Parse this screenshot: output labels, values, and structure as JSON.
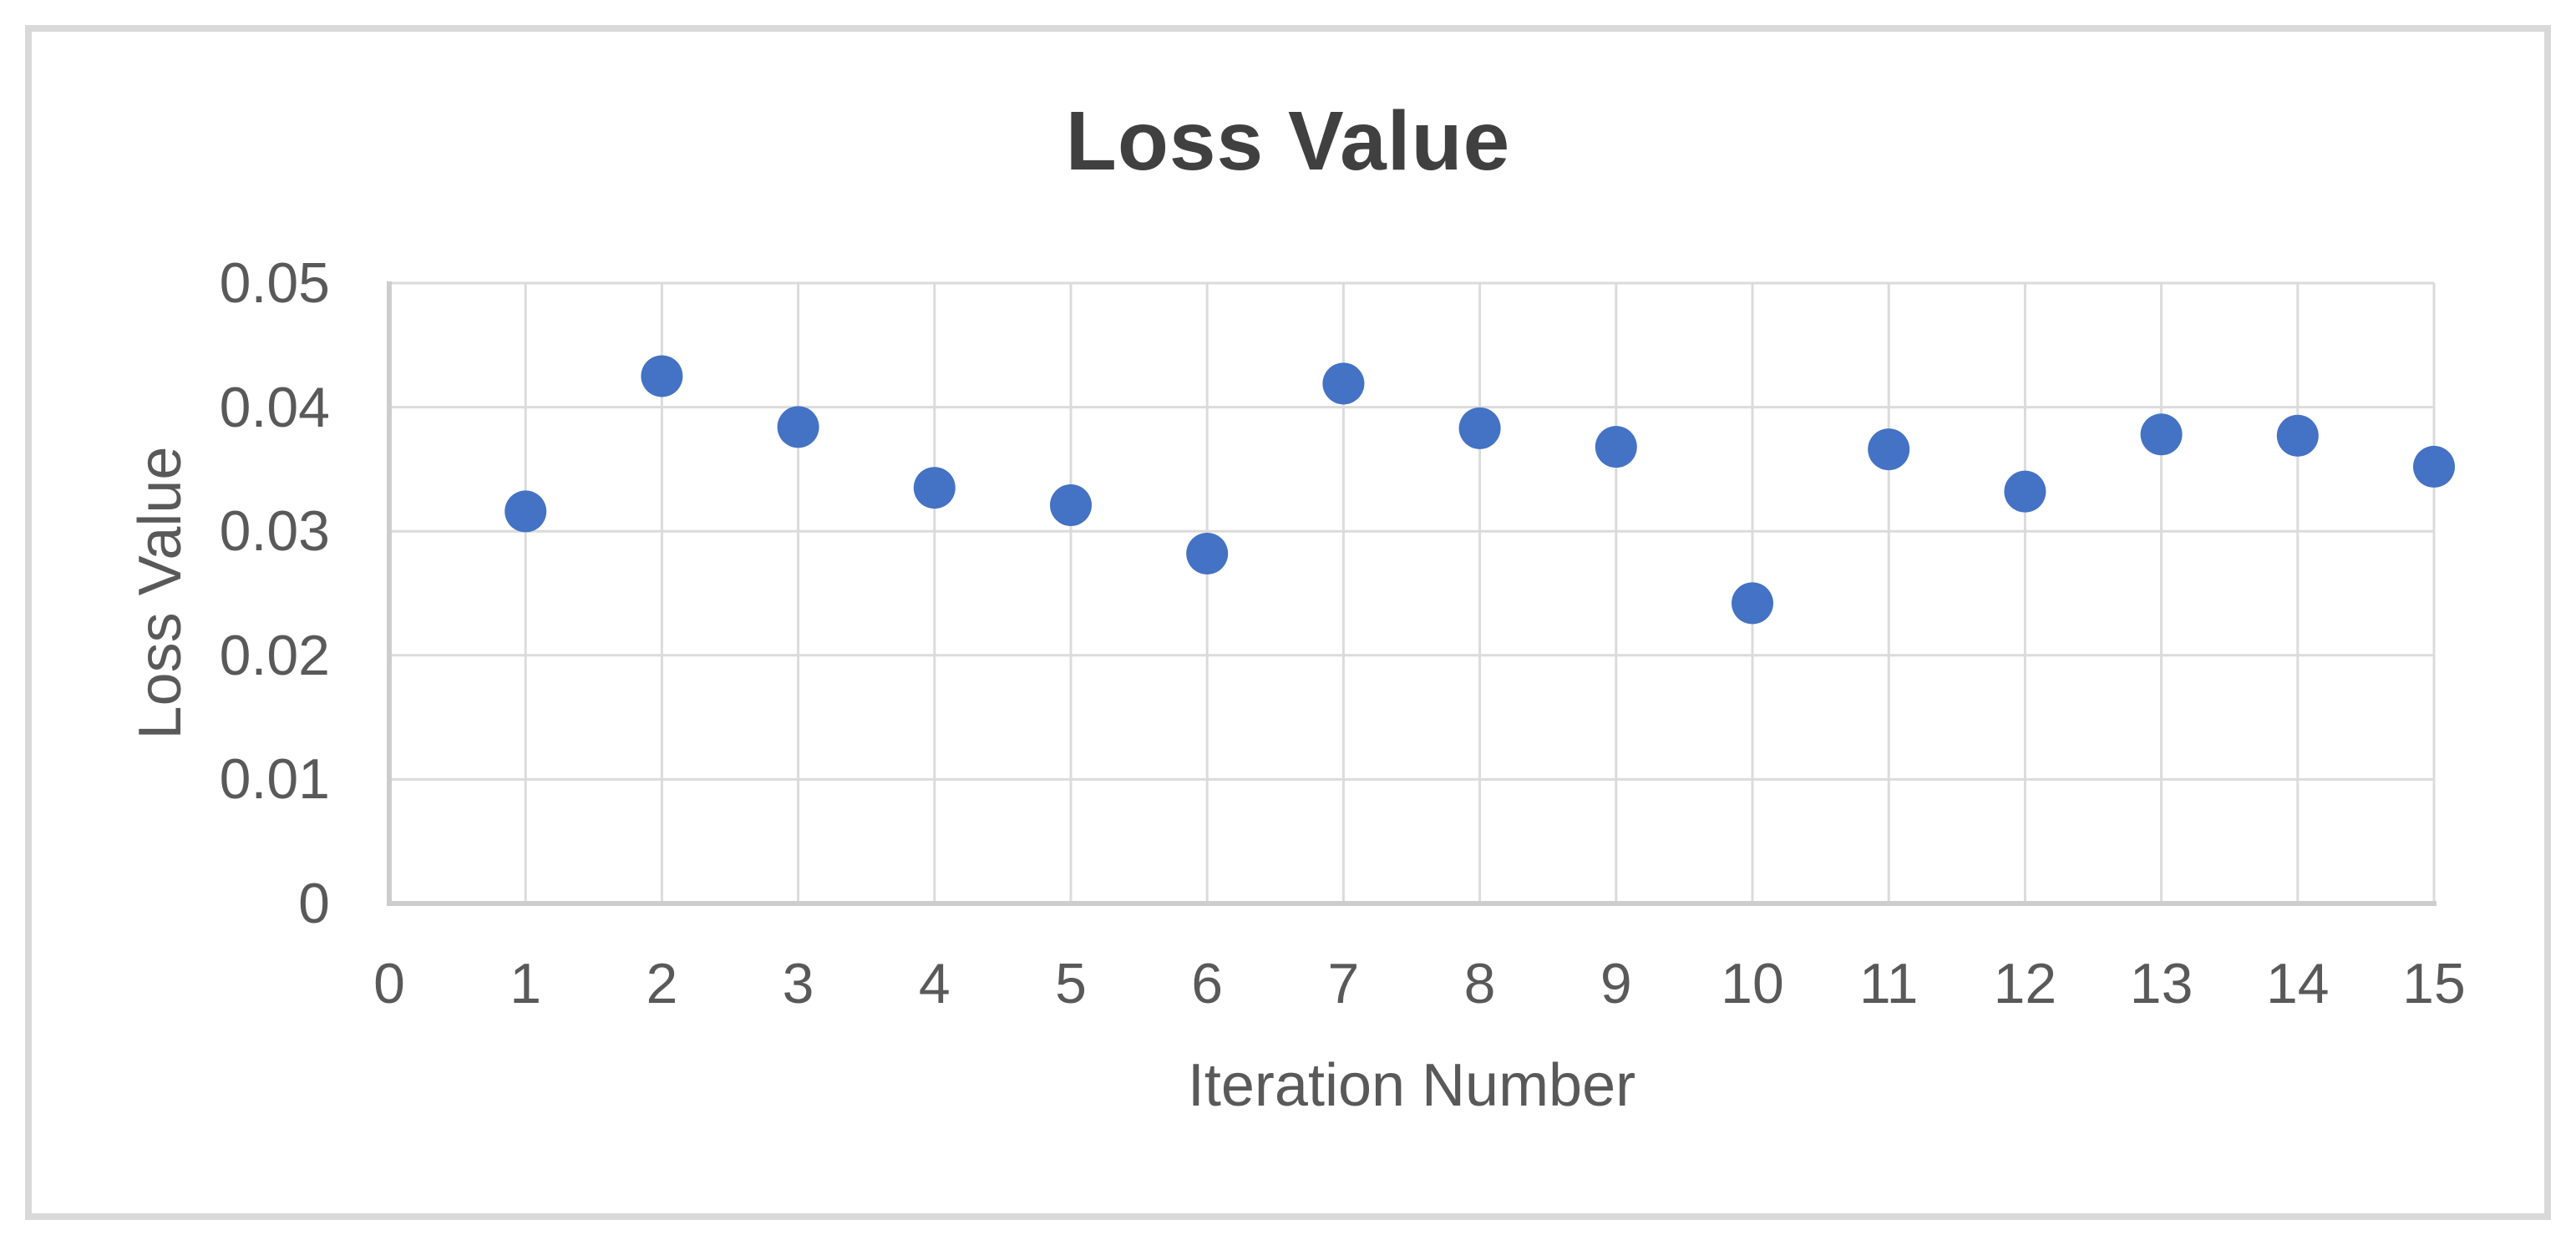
{
  "chart_data": {
    "type": "scatter",
    "title": "Loss Value",
    "xlabel": "Iteration Number",
    "ylabel": "Loss Value",
    "x": [
      1,
      2,
      3,
      4,
      5,
      6,
      7,
      8,
      9,
      10,
      11,
      12,
      13,
      14,
      15
    ],
    "y": [
      0.0316,
      0.0425,
      0.0384,
      0.0335,
      0.0321,
      0.0282,
      0.0419,
      0.0383,
      0.0368,
      0.0242,
      0.0366,
      0.0332,
      0.0378,
      0.0377,
      0.0352
    ],
    "series_name": "Loss Value",
    "xlim": [
      0,
      15
    ],
    "ylim": [
      0,
      0.05
    ],
    "xticks": [
      [
        0,
        "0"
      ],
      [
        1,
        "1"
      ],
      [
        2,
        "2"
      ],
      [
        3,
        "3"
      ],
      [
        4,
        "4"
      ],
      [
        5,
        "5"
      ],
      [
        6,
        "6"
      ],
      [
        7,
        "7"
      ],
      [
        8,
        "8"
      ],
      [
        9,
        "9"
      ],
      [
        10,
        "10"
      ],
      [
        11,
        "11"
      ],
      [
        12,
        "12"
      ],
      [
        13,
        "13"
      ],
      [
        14,
        "14"
      ],
      [
        15,
        "15"
      ]
    ],
    "yticks": [
      [
        0,
        "0"
      ],
      [
        0.01,
        "0.01"
      ],
      [
        0.02,
        "0.02"
      ],
      [
        0.03,
        "0.03"
      ],
      [
        0.04,
        "0.04"
      ],
      [
        0.05,
        "0.05"
      ]
    ],
    "grid": true,
    "legend": false,
    "marker": {
      "shape": "circle",
      "radius_px": 25,
      "color": "#4472C4"
    },
    "colors": {
      "point": "#4472C4",
      "gridline": "#DBDBDB",
      "axis_line": "#CDCDCD",
      "title_text": "#404040",
      "label_text": "#595959",
      "frame_border": "#D9D9D9",
      "background": "#FFFFFF"
    }
  }
}
